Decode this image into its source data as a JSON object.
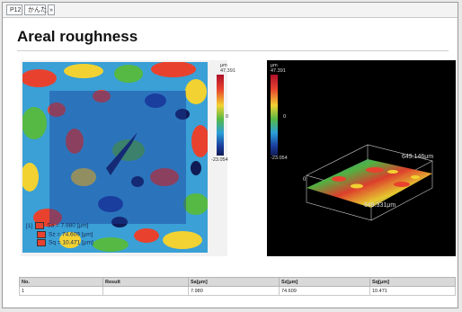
{
  "tabs": [
    {
      "label": "P12"
    },
    {
      "label": "かんたん"
    },
    {
      "label": "»"
    }
  ],
  "title": "Areal roughness",
  "left_view": {
    "scale_unit": "μm",
    "scale_max": "47.391",
    "scale_mid": "0",
    "scale_min": "-23.054",
    "stats": [
      {
        "index": "[1]",
        "text": "Sa = 7.980 [μm]"
      },
      {
        "index": "",
        "text": "Sz = 74.609 [μm]"
      },
      {
        "index": "",
        "text": "Sq = 10.471 [μm]"
      }
    ]
  },
  "right_view": {
    "scale_unit": "μm",
    "scale_max": "47.391",
    "scale_mid": "0",
    "scale_min": "-23.054",
    "axis_origin": "0",
    "axis_y_label": "649.146μm",
    "axis_x_label": "649.331μm"
  },
  "colors": {
    "scale_top": "#b0102a",
    "scale_high": "#e8422e",
    "scale_mid_high": "#f2d232",
    "scale_mid": "#56b944",
    "scale_mid_low": "#2a9fd8",
    "scale_low": "#1b3e9e",
    "scale_bottom": "#101b55"
  },
  "table": {
    "headers": [
      "No.",
      "Result",
      "Sa[μm]",
      "Sz[μm]",
      "Sq[μm]"
    ],
    "rows": [
      [
        "1",
        "",
        "7.980",
        "74.609",
        "10.471"
      ]
    ]
  }
}
